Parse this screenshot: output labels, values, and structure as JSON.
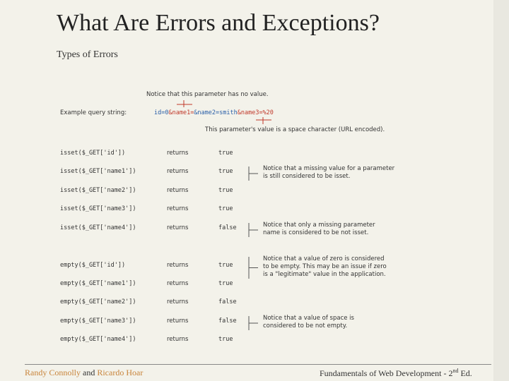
{
  "title": "What Are Errors and Exceptions?",
  "subtitle": "Types of Errors",
  "figure": {
    "top_note": "Notice that this parameter has no value.",
    "query_label": "Example query string:",
    "query_parts": [
      "id=0",
      "&name1=",
      "&name2=smith",
      "&name3=%20"
    ],
    "bottom_note": "This parameter's value is a space character (URL encoded).",
    "rows": [
      [
        "isset($_GET['id'])",
        "returns",
        "true"
      ],
      [
        "isset($_GET['name1'])",
        "returns",
        "true"
      ],
      [
        "isset($_GET['name2'])",
        "returns",
        "true"
      ],
      [
        "isset($_GET['name3'])",
        "returns",
        "true"
      ],
      [
        "isset($_GET['name4'])",
        "returns",
        "false"
      ],
      [
        "empty($_GET['id'])",
        "returns",
        "true"
      ],
      [
        "empty($_GET['name1'])",
        "returns",
        "true"
      ],
      [
        "empty($_GET['name2'])",
        "returns",
        "false"
      ],
      [
        "empty($_GET['name3'])",
        "returns",
        "false"
      ],
      [
        "empty($_GET['name4'])",
        "returns",
        "true"
      ]
    ],
    "annotations": [
      [
        "Notice that a missing value for a parameter",
        "is still considered to be isset."
      ],
      [
        "Notice that only a missing parameter",
        "name is considered to be not isset."
      ],
      [
        "Notice that a value of zero is considered",
        "to be empty. This may be an issue if zero",
        "is a \"legitimate\" value in the application."
      ],
      [
        "Notice that a value of space is",
        "considered to be not empty."
      ]
    ]
  },
  "footer": {
    "author1": "Randy Connolly",
    "and": "and",
    "author2": "Ricardo Hoar",
    "book": "Fundamentals of Web Development - 2",
    "sup": "nd",
    "edition": "Ed."
  }
}
